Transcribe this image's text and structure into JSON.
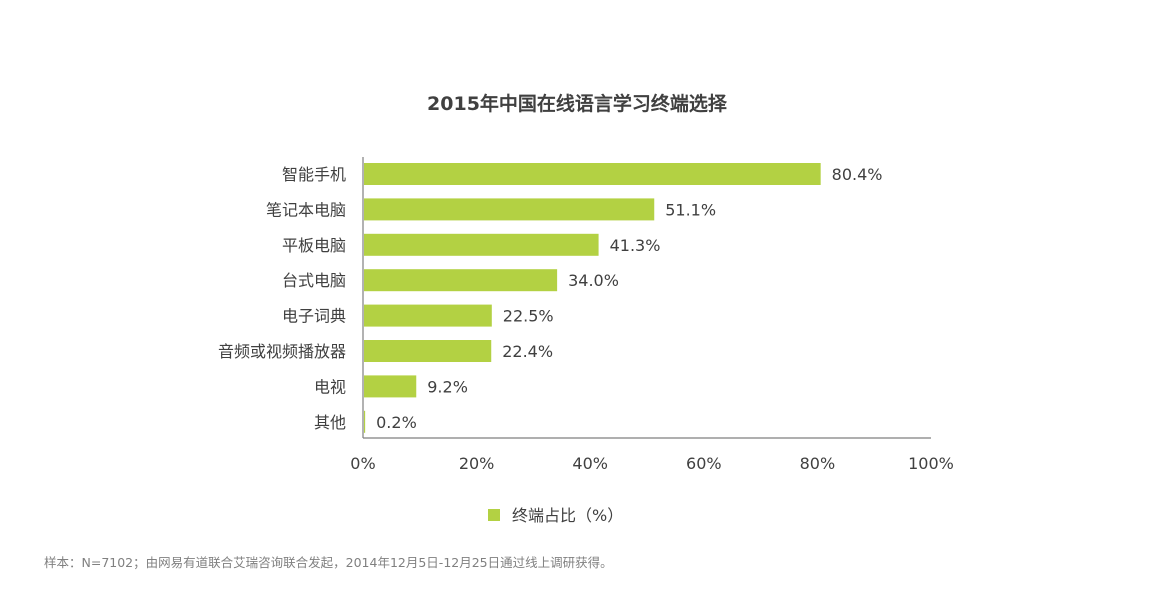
{
  "chart_data": {
    "type": "bar",
    "orientation": "horizontal",
    "title": "2015年中国在线语言学习终端选择",
    "categories": [
      "智能手机",
      "笔记本电脑",
      "平板电脑",
      "台式电脑",
      "电子词典",
      "音频或视频播放器",
      "电视",
      "其他"
    ],
    "values": [
      80.4,
      51.1,
      41.3,
      34.0,
      22.5,
      22.4,
      9.2,
      0.2
    ],
    "value_labels": [
      "80.4%",
      "51.1%",
      "41.3%",
      "34.0%",
      "22.5%",
      "22.4%",
      "9.2%",
      "0.2%"
    ],
    "xlim": [
      0,
      100
    ],
    "x_ticks": [
      "0%",
      "20%",
      "40%",
      "60%",
      "80%",
      "100%"
    ],
    "legend": {
      "label": "终端占比（%）",
      "position": "bottom"
    },
    "bar_color": "#b3d143",
    "grid": false
  },
  "footnote": "样本：N=7102；由网易有道联合艾瑞咨询联合发起，2014年12月5日-12月25日通过线上调研获得。"
}
